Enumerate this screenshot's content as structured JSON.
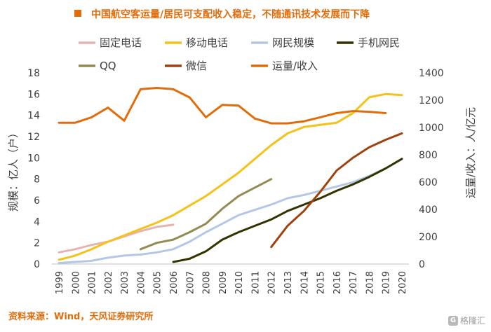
{
  "chart_data": {
    "type": "line",
    "title": "中国航空客运量/居民可支配收入稳定，不随通讯技术发展而下降",
    "source": "资料来源：Wind，天风证券研究所",
    "watermark": "格隆汇",
    "x": [
      1999,
      2000,
      2001,
      2002,
      2003,
      2004,
      2005,
      2006,
      2007,
      2008,
      2009,
      2010,
      2011,
      2012,
      2013,
      2014,
      2015,
      2016,
      2017,
      2018,
      2019,
      2020
    ],
    "x_tick_labels": [
      "1999",
      "2000",
      "2001",
      "2002",
      "2003",
      "2004",
      "2005",
      "2006",
      "2007",
      "2008",
      "2009",
      "2010",
      "2011",
      "2012",
      "2013",
      "2014",
      "2015",
      "2016",
      "2017",
      "2018",
      "2019",
      "2020"
    ],
    "xlim": [
      1999,
      2020
    ],
    "y_left": {
      "label": "规模：亿人（户）",
      "lim": [
        0,
        18
      ],
      "ticks": [
        "0",
        "2",
        "4",
        "6",
        "8",
        "10",
        "12",
        "14",
        "16",
        "18"
      ]
    },
    "y_right": {
      "label": "运量/收入：人/亿元",
      "lim": [
        0,
        1400
      ],
      "ticks": [
        "0",
        "200",
        "400",
        "600",
        "800",
        "1000",
        "1200",
        "1400"
      ]
    },
    "grid": false,
    "legend_position": "top",
    "series": [
      {
        "name": "固定电话",
        "color": "#e6b3b3",
        "axis": "left",
        "x": [
          1999,
          2000,
          2001,
          2002,
          2003,
          2004,
          2005,
          2006
        ],
        "values": [
          1.1,
          1.4,
          1.8,
          2.1,
          2.6,
          3.1,
          3.5,
          3.7
        ]
      },
      {
        "name": "移动电话",
        "color": "#f5c21a",
        "axis": "left",
        "x": [
          1999,
          2000,
          2001,
          2002,
          2003,
          2004,
          2005,
          2006,
          2007,
          2008,
          2009,
          2010,
          2011,
          2012,
          2013,
          2014,
          2015,
          2016,
          2017,
          2018,
          2019,
          2020
        ],
        "values": [
          0.4,
          0.8,
          1.4,
          2.1,
          2.7,
          3.3,
          3.9,
          4.6,
          5.5,
          6.4,
          7.5,
          8.6,
          9.9,
          11.2,
          12.3,
          12.9,
          13.1,
          13.3,
          14.2,
          15.7,
          16.0,
          15.9
        ]
      },
      {
        "name": "网民规模",
        "color": "#b4c7e7",
        "axis": "left",
        "x": [
          1999,
          2000,
          2001,
          2002,
          2003,
          2004,
          2005,
          2006,
          2007,
          2008,
          2009,
          2010,
          2011,
          2012,
          2013,
          2014,
          2015,
          2016,
          2017,
          2018,
          2019,
          2020
        ],
        "values": [
          0.1,
          0.2,
          0.3,
          0.6,
          0.8,
          0.9,
          1.1,
          1.4,
          2.1,
          3.0,
          3.8,
          4.6,
          5.1,
          5.6,
          6.2,
          6.5,
          6.9,
          7.3,
          7.7,
          8.3,
          9.0,
          9.9
        ]
      },
      {
        "name": "手机网民",
        "color": "#333300",
        "axis": "left",
        "x": [
          2006,
          2007,
          2008,
          2009,
          2010,
          2011,
          2012,
          2013,
          2014,
          2015,
          2016,
          2017,
          2018,
          2019,
          2020
        ],
        "values": [
          0.2,
          0.5,
          1.2,
          2.3,
          3.0,
          3.6,
          4.2,
          5.0,
          5.6,
          6.2,
          6.9,
          7.5,
          8.2,
          9.0,
          9.9
        ]
      },
      {
        "name": "QQ",
        "color": "#948a54",
        "axis": "left",
        "x": [
          2004,
          2005,
          2006,
          2007,
          2008,
          2009,
          2010,
          2011,
          2012
        ],
        "values": [
          1.4,
          2.0,
          2.3,
          3.0,
          3.8,
          5.2,
          6.4,
          7.2,
          8.0
        ]
      },
      {
        "name": "微信",
        "color": "#a0420e",
        "axis": "left",
        "x": [
          2012,
          2013,
          2014,
          2015,
          2016,
          2017,
          2018,
          2019,
          2020
        ],
        "values": [
          1.6,
          3.6,
          5.0,
          6.8,
          8.8,
          10.0,
          11.0,
          11.7,
          12.3
        ]
      },
      {
        "name": "运量/收入",
        "color": "#e36c0a",
        "axis": "right",
        "x": [
          1999,
          2000,
          2001,
          2002,
          2003,
          2004,
          2005,
          2006,
          2007,
          2008,
          2009,
          2010,
          2011,
          2012,
          2013,
          2014,
          2015,
          2016,
          2017,
          2018,
          2019
        ],
        "values": [
          1035,
          1035,
          1075,
          1145,
          1050,
          1280,
          1290,
          1280,
          1220,
          1075,
          1165,
          1160,
          1065,
          1030,
          1030,
          1045,
          1075,
          1105,
          1120,
          1115,
          1105
        ]
      }
    ]
  }
}
